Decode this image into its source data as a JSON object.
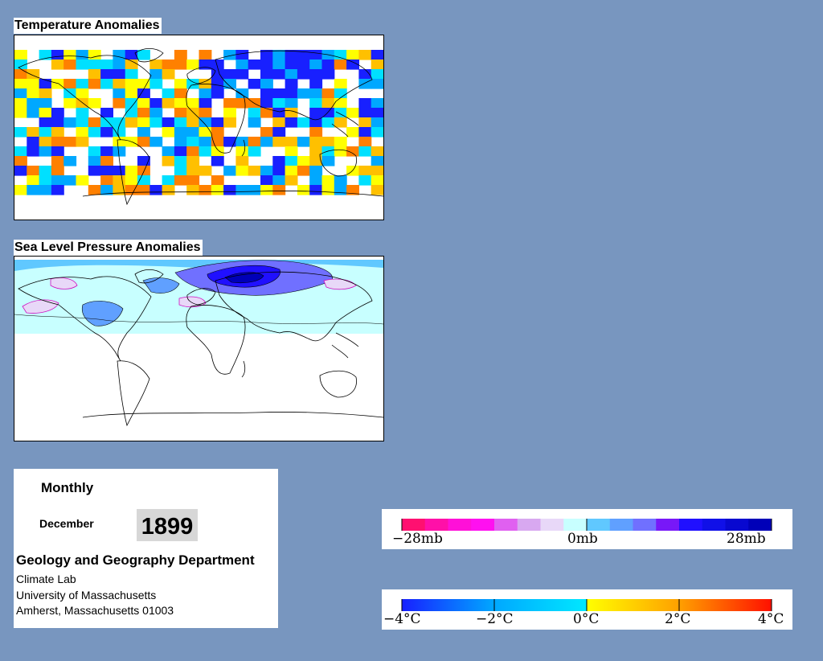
{
  "maps": {
    "temperature": {
      "title": "Temperature Anomalies",
      "land": "#ffffff",
      "coast": "#000000"
    },
    "pressure": {
      "title": "Sea Level Pressure Anomalies",
      "land": "#ffffff",
      "coast": "#000000"
    }
  },
  "info": {
    "period": "Monthly",
    "month": "December",
    "year": "1899",
    "department": "Geology and Geography Department",
    "lab": "Climate Lab",
    "university": "University of Massachusetts",
    "address": "Amherst, Massachusetts 01003"
  },
  "pressure_legend": {
    "labels": [
      "−28mb",
      "0mb",
      "28mb"
    ],
    "unit": "mb",
    "range": [
      -28,
      28
    ],
    "colors": [
      "#ff1070",
      "#ff10a8",
      "#ff10d8",
      "#ff10f0",
      "#e060f0",
      "#d8a8f0",
      "#e8d8f8",
      "#c8ffff",
      "#60c8ff",
      "#60a0ff",
      "#7070ff",
      "#7818f8",
      "#2010ff",
      "#1010e8",
      "#0808d0",
      "#0000b8"
    ]
  },
  "temperature_legend": {
    "labels": [
      "−4°C",
      "−2°C",
      "0°C",
      "2°C",
      "4°C"
    ],
    "unit": "°C",
    "range": [
      -4,
      4
    ],
    "colors": [
      "#1820ff",
      "#00a8ff",
      "#00e0ff",
      "#ffff00",
      "#ffc000",
      "#ff8000",
      "#ff2000"
    ]
  }
}
